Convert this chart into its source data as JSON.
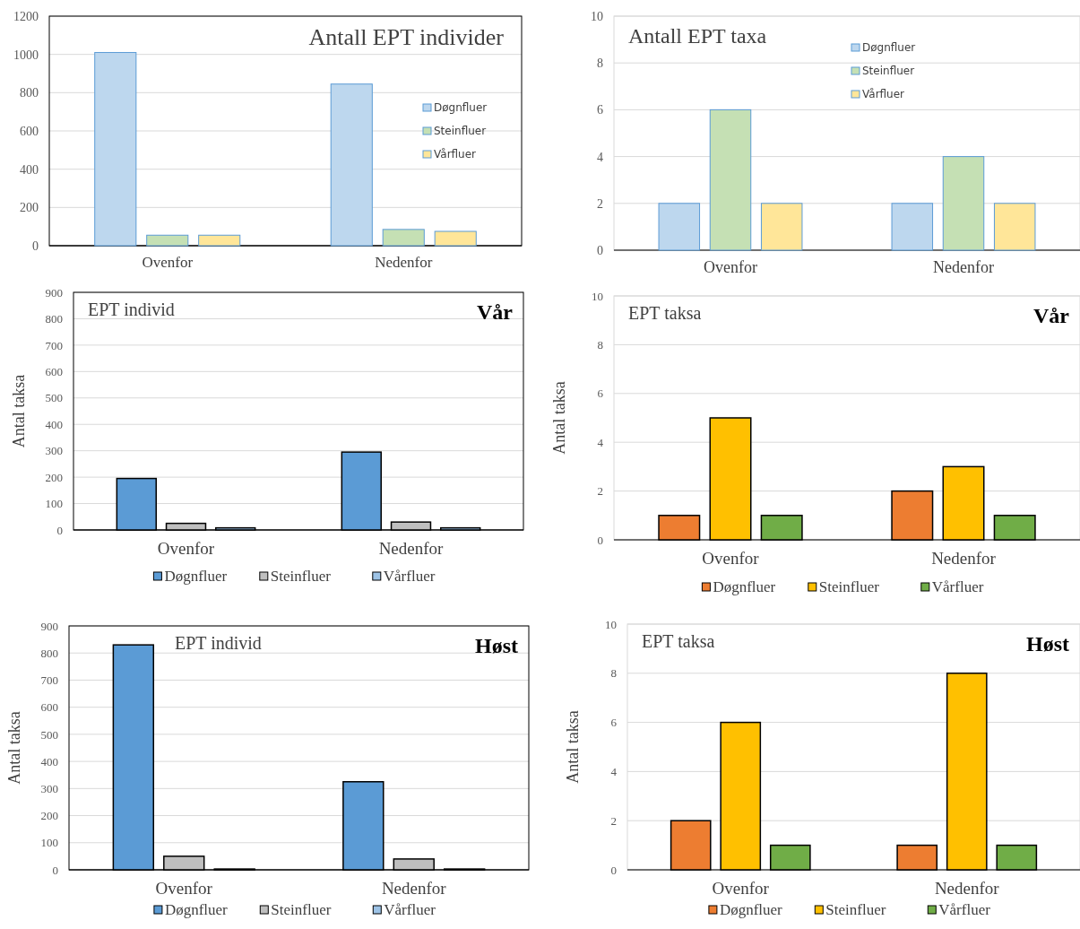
{
  "chart_data": [
    {
      "type": "bar",
      "title": "Antall EPT individer",
      "categories": [
        "Ovenfor",
        "Nedenfor"
      ],
      "series": [
        {
          "name": "Døgnfluer",
          "color": "#bdd7ee",
          "values": [
            1010,
            845
          ]
        },
        {
          "name": "Steinfluer",
          "color": "#c5e0b4",
          "values": [
            55,
            85
          ]
        },
        {
          "name": "Vårfluer",
          "color": "#ffe699",
          "values": [
            55,
            75
          ]
        }
      ],
      "ylim": [
        0,
        1200
      ],
      "yticks": [
        0,
        200,
        400,
        600,
        800,
        1000,
        1200
      ],
      "grid": "y",
      "legend": "right"
    },
    {
      "type": "bar",
      "title": "Antall EPT taxa",
      "categories": [
        "Ovenfor",
        "Nedenfor"
      ],
      "series": [
        {
          "name": "Døgnfluer",
          "color": "#bdd7ee",
          "values": [
            2,
            2
          ]
        },
        {
          "name": "Steinfluer",
          "color": "#c5e0b4",
          "values": [
            6,
            4
          ]
        },
        {
          "name": "Vårfluer",
          "color": "#ffe699",
          "values": [
            2,
            2
          ]
        }
      ],
      "ylim": [
        0,
        10
      ],
      "yticks": [
        0,
        2,
        4,
        6,
        8,
        10
      ],
      "grid": "y",
      "legend": "top right"
    },
    {
      "type": "bar",
      "title": "EPT individ",
      "subtitle": "Vår",
      "ylabel": "Antal taksa",
      "categories": [
        "Ovenfor",
        "Nedenfor"
      ],
      "series": [
        {
          "name": "Døgnfluer",
          "color": "#5b9bd5",
          "values": [
            195,
            295
          ]
        },
        {
          "name": "Steinfluer",
          "color": "#bfbfbf",
          "values": [
            25,
            30
          ]
        },
        {
          "name": "Vårfluer",
          "color": "#9dc3e6",
          "values": [
            8,
            8
          ]
        }
      ],
      "ylim": [
        0,
        900
      ],
      "yticks": [
        0,
        100,
        200,
        300,
        400,
        500,
        600,
        700,
        800,
        900
      ],
      "grid": "y",
      "legend": "bottom"
    },
    {
      "type": "bar",
      "title": "EPT taksa",
      "subtitle": "Vår",
      "ylabel": "Antal taksa",
      "categories": [
        "Ovenfor",
        "Nedenfor"
      ],
      "series": [
        {
          "name": "Døgnfluer",
          "color": "#ed7d31",
          "values": [
            1,
            2
          ]
        },
        {
          "name": "Steinfluer",
          "color": "#ffc000",
          "values": [
            5,
            3
          ]
        },
        {
          "name": "Vårfluer",
          "color": "#70ad47",
          "values": [
            1,
            1
          ]
        }
      ],
      "ylim": [
        0,
        10
      ],
      "yticks": [
        0,
        2,
        4,
        6,
        8,
        10
      ],
      "grid": "y",
      "legend": "bottom"
    },
    {
      "type": "bar",
      "title": "EPT individ",
      "subtitle": "Høst",
      "ylabel": "Antal taksa",
      "categories": [
        "Ovenfor",
        "Nedenfor"
      ],
      "series": [
        {
          "name": "Døgnfluer",
          "color": "#5b9bd5",
          "values": [
            830,
            325
          ]
        },
        {
          "name": "Steinfluer",
          "color": "#bfbfbf",
          "values": [
            50,
            40
          ]
        },
        {
          "name": "Vårfluer",
          "color": "#9dc3e6",
          "values": [
            3,
            3
          ]
        }
      ],
      "ylim": [
        0,
        900
      ],
      "yticks": [
        0,
        100,
        200,
        300,
        400,
        500,
        600,
        700,
        800,
        900
      ],
      "grid": "y",
      "legend": "bottom"
    },
    {
      "type": "bar",
      "title": "EPT taksa",
      "subtitle": "Høst",
      "ylabel": "Antal taksa",
      "categories": [
        "Ovenfor",
        "Nedenfor"
      ],
      "series": [
        {
          "name": "Døgnfluer",
          "color": "#ed7d31",
          "values": [
            2,
            1
          ]
        },
        {
          "name": "Steinfluer",
          "color": "#ffc000",
          "values": [
            6,
            8
          ]
        },
        {
          "name": "Vårfluer",
          "color": "#70ad47",
          "values": [
            1,
            1
          ]
        }
      ],
      "ylim": [
        0,
        10
      ],
      "yticks": [
        0,
        2,
        4,
        6,
        8,
        10
      ],
      "grid": "y",
      "legend": "bottom"
    }
  ]
}
